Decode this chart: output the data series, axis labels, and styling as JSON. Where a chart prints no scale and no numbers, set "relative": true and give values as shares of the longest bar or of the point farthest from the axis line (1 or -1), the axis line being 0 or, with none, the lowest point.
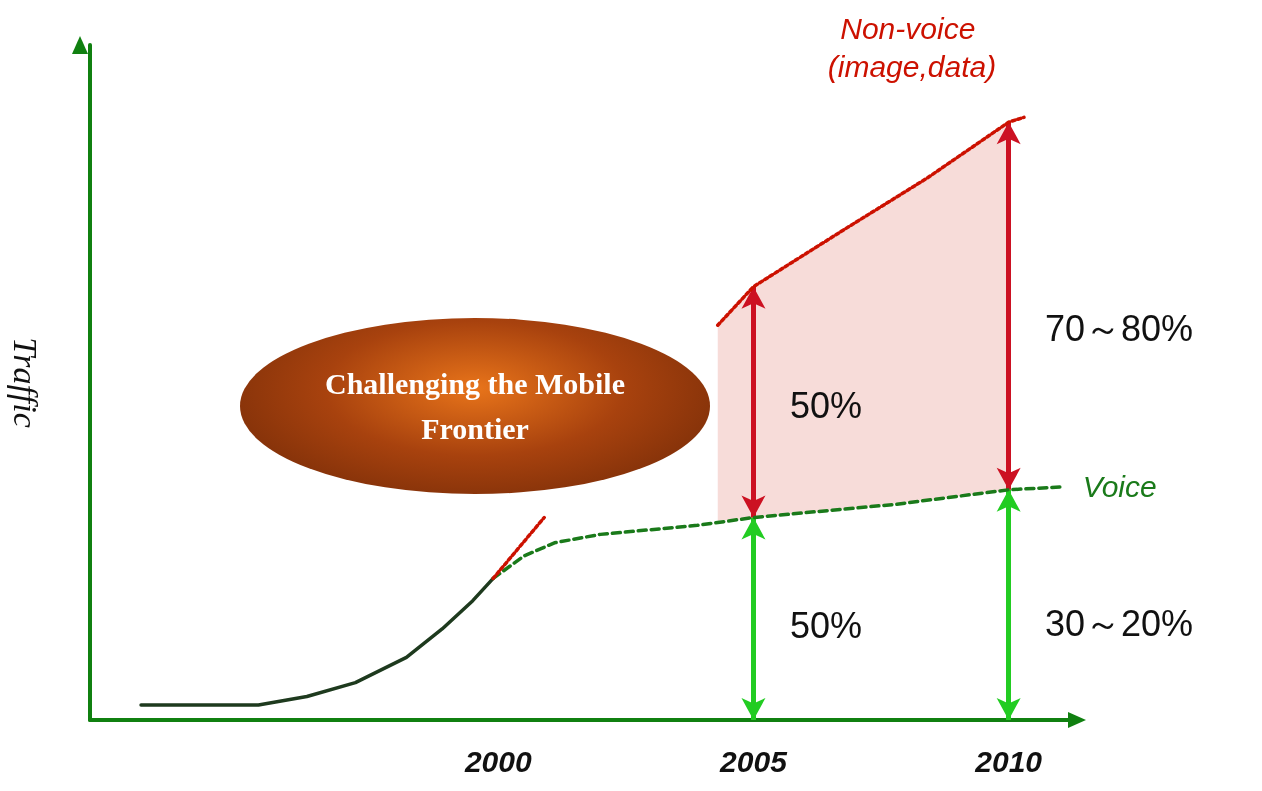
{
  "chart_data": {
    "type": "line",
    "relative": true,
    "ylabel": "Traffic",
    "xlim": [
      1992,
      2011.3
    ],
    "xticks": [
      2000,
      2005,
      2010
    ],
    "marker": "none",
    "series": [
      {
        "color": "#1e3a1e",
        "line_style": "solid",
        "x": [
          1993.0,
          1995.3,
          1996.25,
          1997.2,
          1998.2,
          1998.9,
          1999.5,
          1999.9
        ],
        "values": [
          0.025,
          0.025,
          0.039,
          0.062,
          0.104,
          0.151,
          0.198,
          0.235
        ]
      },
      {
        "name": "Voice",
        "color": "#1a7a1a",
        "line_style": "dashed",
        "x": [
          1999.9,
          2000.5,
          2001.1,
          2002.0,
          2003.9,
          2005,
          2007.8,
          2010,
          2011.1
        ],
        "values": [
          0.235,
          0.272,
          0.294,
          0.308,
          0.323,
          0.336,
          0.358,
          0.382,
          0.387
        ]
      },
      {
        "name": "Non-voice (image,data)",
        "color": "#cc1100",
        "line_style": "dotted",
        "x": [
          1999.9,
          2000.9,
          2002.0,
          2003.2,
          2004.3,
          2005,
          2006.8,
          2008.4,
          2010,
          2010.3
        ],
        "values": [
          0.235,
          0.336,
          null,
          null,
          0.655,
          0.719,
          0.815,
          0.899,
          0.992,
          1.0
        ],
        "lower": [
          null,
          null,
          null,
          null,
          0.33,
          0.336,
          0.35,
          0.365,
          0.382,
          null
        ],
        "upper": [
          null,
          null,
          null,
          null,
          0.655,
          0.719,
          0.815,
          0.899,
          0.992,
          null
        ]
      }
    ],
    "annotations": [
      "Challenging the Mobile Frontier",
      "50%",
      "50%",
      "70～80%",
      "30～20%"
    ]
  }
}
